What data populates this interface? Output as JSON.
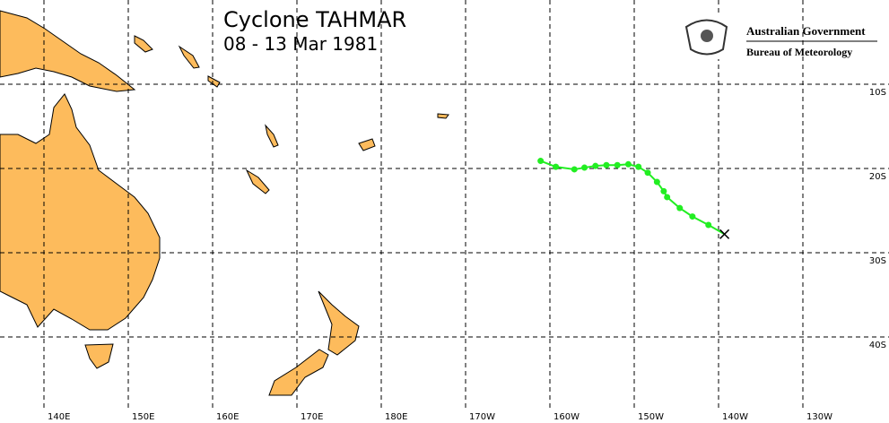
{
  "header": {
    "title": "Cyclone TAHMAR",
    "subtitle": "08 - 13 Mar 1981"
  },
  "logo": {
    "line1": "Australian Government",
    "line2": "Bureau of Meteorology"
  },
  "grid": {
    "lon": [
      {
        "value": 140,
        "label": "140E"
      },
      {
        "value": 150,
        "label": "150E"
      },
      {
        "value": 160,
        "label": "160E"
      },
      {
        "value": 170,
        "label": "170E"
      },
      {
        "value": 180,
        "label": "180E"
      },
      {
        "value": 190,
        "label": "170W"
      },
      {
        "value": 200,
        "label": "160W"
      },
      {
        "value": 210,
        "label": "150W"
      },
      {
        "value": 220,
        "label": "140W"
      },
      {
        "value": 230,
        "label": "130W"
      }
    ],
    "lat": [
      {
        "value": 10,
        "label": "10S"
      },
      {
        "value": 20,
        "label": "20S"
      },
      {
        "value": 30,
        "label": "30S"
      },
      {
        "value": 40,
        "label": "40S"
      }
    ]
  },
  "track": {
    "color": "#22ee22",
    "lon": [
      198.9,
      200.7,
      202.9,
      204.1,
      205.4,
      206.7,
      208.0,
      209.3,
      210.5,
      211.6,
      212.7,
      213.5,
      213.9,
      215.4,
      216.9,
      218.8,
      220.7
    ],
    "lat": [
      19.1,
      19.8,
      20.1,
      19.9,
      19.7,
      19.6,
      19.6,
      19.5,
      19.8,
      20.5,
      21.6,
      22.7,
      23.4,
      24.7,
      25.7,
      26.7,
      27.8
    ]
  }
}
